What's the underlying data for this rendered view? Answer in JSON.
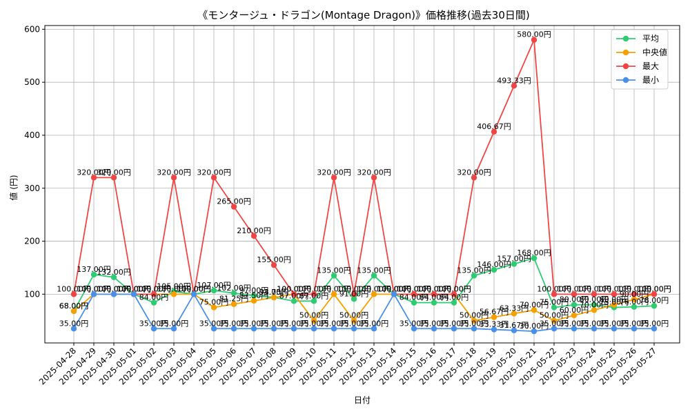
{
  "chart_data": {
    "type": "line",
    "title": "《モンタージュ・ドラゴン(Montage Dragon)》価格推移(過去30日間)",
    "xlabel": "日付",
    "ylabel": "値 (円)",
    "ylim": [
      8,
      607
    ],
    "yticks": [
      100,
      200,
      300,
      400,
      500,
      600
    ],
    "grid": true,
    "legend_position": "top-right",
    "label_suffix": "円",
    "categories": [
      "2025-04-28",
      "2025-04-29",
      "2025-04-30",
      "2025-05-01",
      "2025-05-02",
      "2025-05-03",
      "2025-05-04",
      "2025-05-05",
      "2025-05-06",
      "2025-05-07",
      "2025-05-08",
      "2025-05-09",
      "2025-05-10",
      "2025-05-11",
      "2025-05-12",
      "2025-05-13",
      "2025-05-14",
      "2025-05-15",
      "2025-05-16",
      "2025-05-17",
      "2025-05-18",
      "2025-05-19",
      "2025-05-20",
      "2025-05-21",
      "2025-05-22",
      "2025-05-23",
      "2025-05-24",
      "2025-05-25",
      "2025-05-26",
      "2025-05-27"
    ],
    "series": [
      {
        "name": "平均",
        "color": "#2ecc71",
        "values": [
          68.0,
          137.0,
          132.0,
          100.0,
          84.0,
          105.0,
          100.0,
          107.0,
          102.0,
          97.0,
          94.0,
          87.0,
          87.0,
          135.0,
          91.0,
          135.0,
          100.0,
          84.0,
          84.0,
          84.0,
          135.0,
          146.0,
          157.0,
          168.0,
          75.0,
          80.0,
          80.0,
          75.0,
          76.0,
          78.0
        ]
      },
      {
        "name": "中央値",
        "color": "#f5a000",
        "values": [
          68.0,
          100.0,
          100.0,
          100.0,
          100.0,
          100.0,
          100.0,
          75.0,
          81.25,
          87.5,
          93.75,
          100.0,
          50.0,
          100.0,
          50.0,
          100.0,
          100.0,
          100.0,
          100.0,
          100.0,
          50.0,
          56.67,
          63.33,
          70.0,
          50.0,
          60.0,
          70.0,
          80.0,
          90.0,
          100.0
        ]
      },
      {
        "name": "最大",
        "color": "#f04545",
        "values": [
          100.0,
          320.0,
          320.0,
          100.0,
          100.0,
          320.0,
          100.0,
          320.0,
          265.0,
          210.0,
          155.0,
          100.0,
          100.0,
          320.0,
          100.0,
          320.0,
          100.0,
          100.0,
          100.0,
          100.0,
          320.0,
          406.67,
          493.33,
          580.0,
          100.0,
          100.0,
          100.0,
          100.0,
          100.0,
          100.0
        ]
      },
      {
        "name": "最小",
        "color": "#4a90e8",
        "values": [
          35.0,
          100.0,
          100.0,
          100.0,
          35.0,
          35.0,
          100.0,
          35.0,
          35.0,
          35.0,
          35.0,
          35.0,
          35.0,
          35.0,
          35.0,
          35.0,
          100.0,
          35.0,
          35.0,
          35.0,
          35.0,
          33.33,
          31.67,
          30.0,
          35.0,
          35.0,
          35.0,
          35.0,
          35.0,
          35.0
        ]
      }
    ]
  }
}
